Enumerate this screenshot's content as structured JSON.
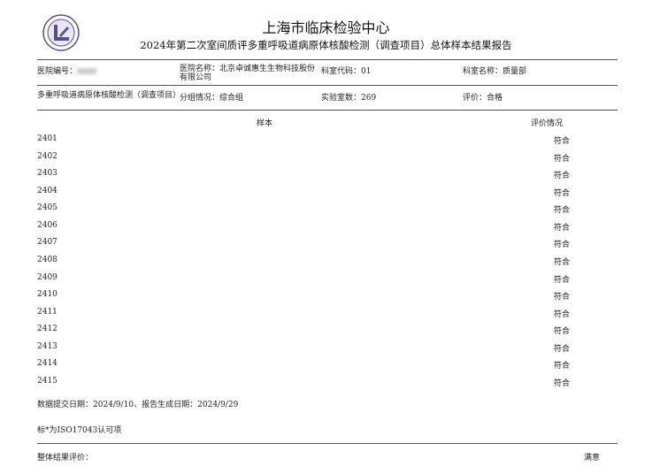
{
  "header": {
    "title": "上海市临床检验中心",
    "subtitle": "2024年第二次室间质评多重呼吸道病原体核酸检测（调查项目）总体样本结果报告"
  },
  "info_row1": {
    "hospital_id_label": "医院编号：",
    "hospital_name": "医院名称：北京卓诚惠生生物科技股份有限公司",
    "dept_code": "科室代码：01",
    "dept_name": "科室名称：质量部"
  },
  "info_row2": {
    "project": "多重呼吸道病原体核酸检测（调查项目）",
    "group": "分组情况：综合组",
    "lab_count": "实验室数：269",
    "evaluation": "评价：合格"
  },
  "table": {
    "columns": [
      "样本",
      "评价情况"
    ],
    "rows": [
      {
        "id": "2401",
        "result": "符合"
      },
      {
        "id": "2402",
        "result": "符合"
      },
      {
        "id": "2403",
        "result": "符合"
      },
      {
        "id": "2404",
        "result": "符合"
      },
      {
        "id": "2405",
        "result": "符合"
      },
      {
        "id": "2406",
        "result": "符合"
      },
      {
        "id": "2407",
        "result": "符合"
      },
      {
        "id": "2408",
        "result": "符合"
      },
      {
        "id": "2409",
        "result": "符合"
      },
      {
        "id": "2410",
        "result": "符合"
      },
      {
        "id": "2411",
        "result": "符合"
      },
      {
        "id": "2412",
        "result": "符合"
      },
      {
        "id": "2413",
        "result": "符合"
      },
      {
        "id": "2414",
        "result": "符合"
      },
      {
        "id": "2415",
        "result": "符合"
      }
    ]
  },
  "footer": {
    "dates": "数据提交日期：2024/9/10、报告生成日期：2024/9/29",
    "note": "标*为ISO17043认可项",
    "overall_label": "整体结果评价：",
    "overall_value": "满意"
  },
  "colors": {
    "logo": "#5a4f8c",
    "rule": "#555555"
  }
}
